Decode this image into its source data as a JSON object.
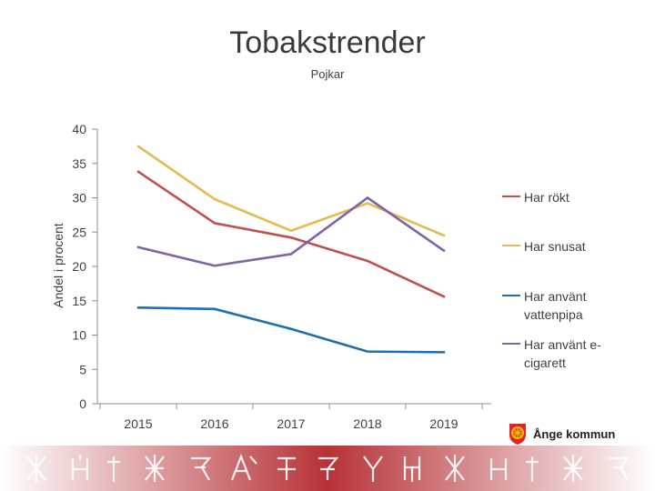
{
  "chart_data": {
    "type": "line",
    "title": "Tobakstrender",
    "subtitle": "Pojkar",
    "ylabel": "Andel i procent",
    "xlabel": "",
    "categories": [
      "2015",
      "2016",
      "2017",
      "2018",
      "2019"
    ],
    "ylim": [
      0,
      40
    ],
    "yticks": [
      "0",
      "5",
      "10",
      "15",
      "20",
      "25",
      "30",
      "35",
      "40"
    ],
    "grid": false,
    "legend_position": "right",
    "series": [
      {
        "name": "Har rökt",
        "color": "#c0504d",
        "values": [
          33.8,
          26.3,
          24.2,
          20.8,
          15.6
        ]
      },
      {
        "name": "Har snusat",
        "color": "#e3bb53",
        "values": [
          37.5,
          29.8,
          25.2,
          29.2,
          24.5
        ]
      },
      {
        "name": "Har använt vattenpipa",
        "color": "#1f6fb0",
        "values": [
          14.0,
          13.8,
          10.9,
          7.6,
          7.5
        ]
      },
      {
        "name": "Har använt e-cigarett",
        "color": "#8064a2",
        "values": [
          22.8,
          20.1,
          21.8,
          30.0,
          22.3
        ]
      }
    ]
  },
  "legend": {
    "items": [
      {
        "label": "Har rökt",
        "color": "#c0504d"
      },
      {
        "label": "Har snusat",
        "color": "#e3bb53"
      },
      {
        "label": "Har använt vattenpipa",
        "color": "#1f6fb0"
      },
      {
        "label": "Har använt e-cigarett",
        "color": "#8064a2"
      }
    ]
  },
  "logo": {
    "text": "Ånge kommun",
    "color": "#e0252a",
    "accent": "#f6c000"
  },
  "band": {
    "colors": [
      "#ffffff",
      "#b3272d",
      "#ffffff"
    ]
  }
}
